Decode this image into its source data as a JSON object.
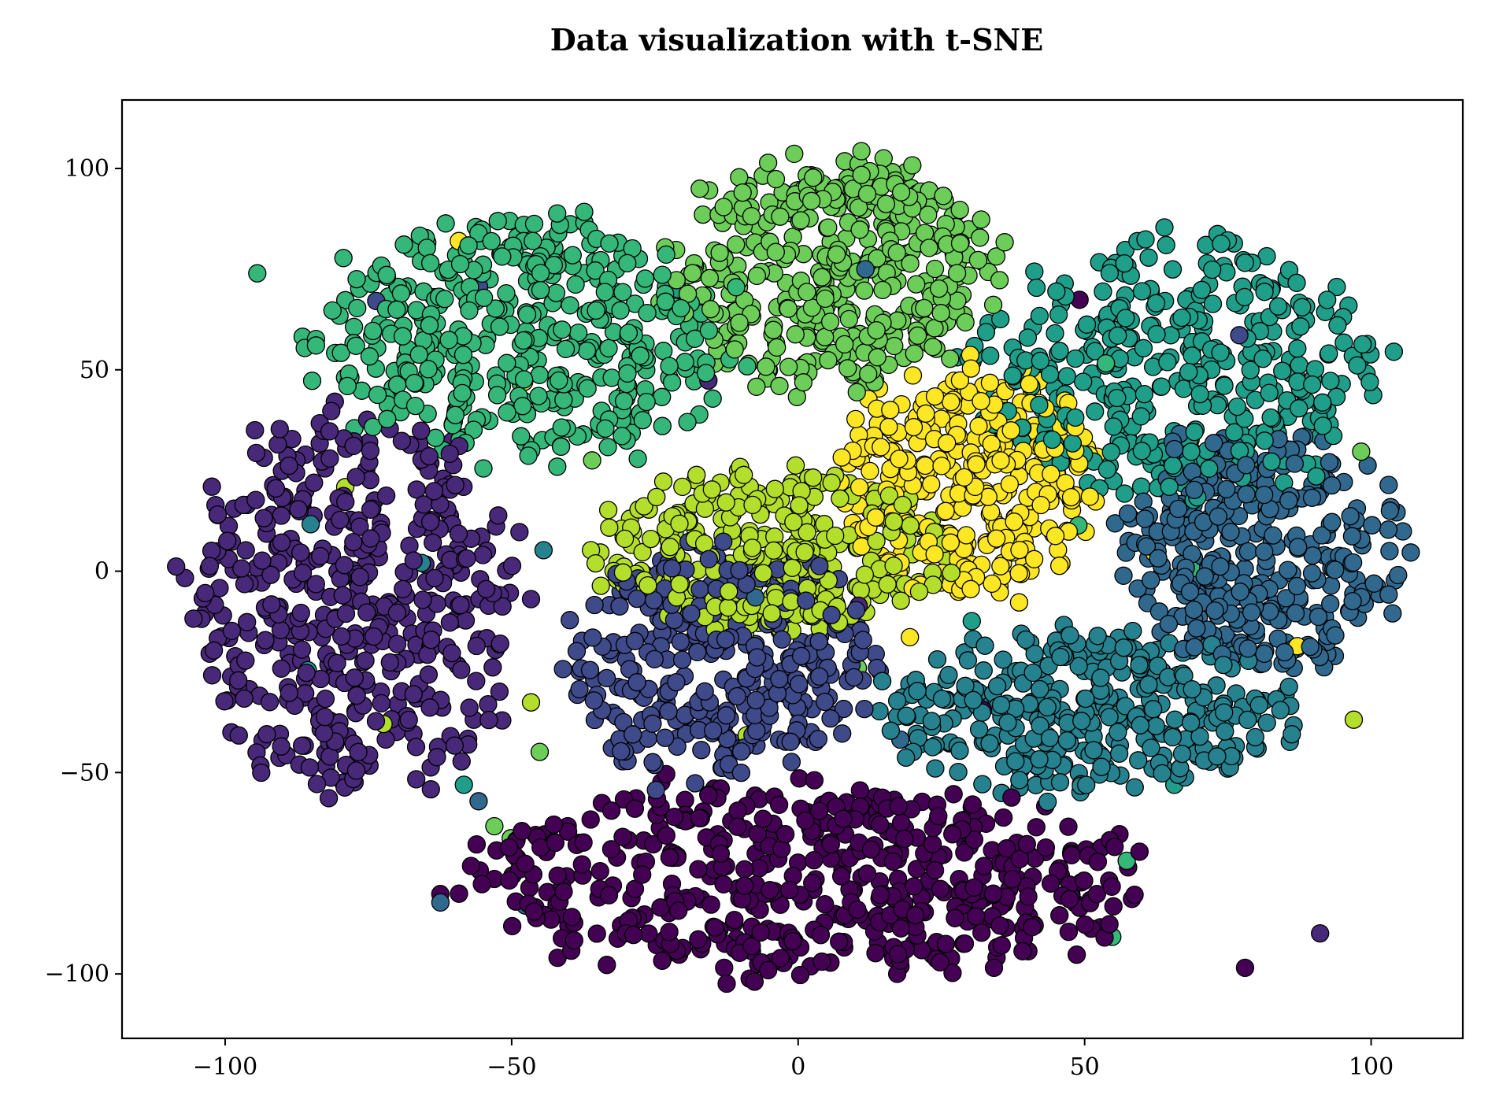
{
  "chart_data": {
    "type": "scatter",
    "title": "Data visualization with t-SNE",
    "xlabel": "",
    "ylabel": "",
    "xlim": [
      -118,
      116
    ],
    "ylim": [
      -116,
      117
    ],
    "xticks": [
      -100,
      -50,
      0,
      50,
      100
    ],
    "yticks": [
      -100,
      -50,
      0,
      50,
      100
    ],
    "xtick_labels": [
      "−100",
      "−50",
      "0",
      "50",
      "100"
    ],
    "ytick_labels": [
      "−100",
      "−50",
      "0",
      "50",
      "100"
    ],
    "grid": false,
    "legend": "none",
    "colormap": [
      "#440154",
      "#482878",
      "#3e4a89",
      "#31688e",
      "#26828e",
      "#1f9e89",
      "#35b779",
      "#6dcd59",
      "#b4de2c",
      "#fde725"
    ],
    "clusters": [
      {
        "label": 0,
        "color": "#440154",
        "cx": 0,
        "cy": -77,
        "rx": 58,
        "ry": 24,
        "n": 520
      },
      {
        "label": 1,
        "color": "#482878",
        "cx": -78,
        "cy": -8,
        "rx": 28,
        "ry": 48,
        "n": 460
      },
      {
        "label": 2,
        "color": "#3e4a89",
        "cx": -14,
        "cy": -22,
        "rx": 27,
        "ry": 28,
        "n": 360
      },
      {
        "label": 3,
        "color": "#31688e",
        "cx": 80,
        "cy": 5,
        "rx": 24,
        "ry": 30,
        "n": 360
      },
      {
        "label": 4,
        "color": "#26828e",
        "cx": 50,
        "cy": -35,
        "rx": 34,
        "ry": 20,
        "n": 350
      },
      {
        "label": 5,
        "color": "#1f9e89",
        "cx": 66,
        "cy": 50,
        "rx": 35,
        "ry": 32,
        "n": 380
      },
      {
        "label": 6,
        "color": "#35b779",
        "cx": -48,
        "cy": 58,
        "rx": 36,
        "ry": 30,
        "n": 420
      },
      {
        "label": 7,
        "color": "#6dcd59",
        "cx": 6,
        "cy": 74,
        "rx": 28,
        "ry": 28,
        "n": 400
      },
      {
        "label": 8,
        "color": "#b4de2c",
        "cx": -5,
        "cy": 5,
        "rx": 30,
        "ry": 20,
        "n": 330
      },
      {
        "label": 9,
        "color": "#fde725",
        "cx": 30,
        "cy": 22,
        "rx": 22,
        "ry": 28,
        "n": 330
      }
    ]
  }
}
